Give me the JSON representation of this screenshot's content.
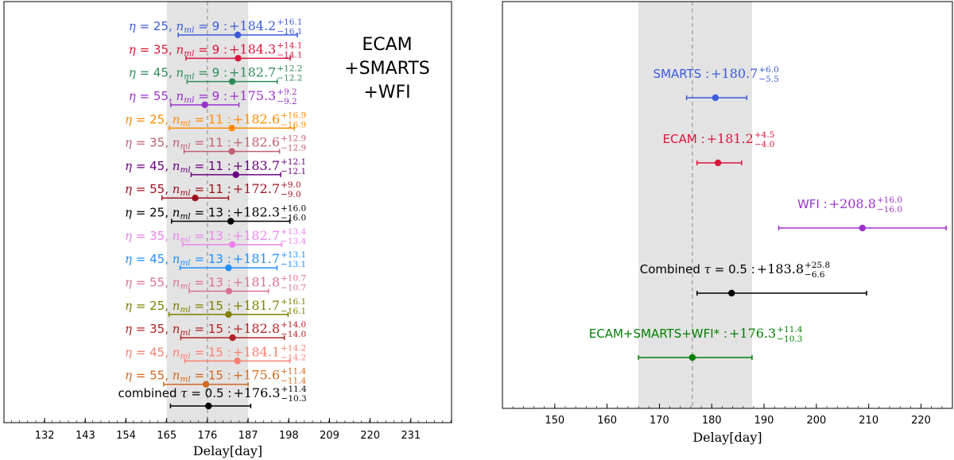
{
  "chart_data": [
    {
      "type": "errorbar",
      "title": "",
      "xlabel": "Delay[day]",
      "ylabel": "",
      "xlim": [
        121,
        242
      ],
      "xticks": [
        132,
        143,
        154,
        165,
        176,
        187,
        198,
        209,
        220,
        231
      ],
      "reference_line": 176,
      "shaded_band": [
        165,
        187
      ],
      "dataset_label": [
        "ECAM",
        "+SMARTS",
        "+WFI"
      ],
      "points": [
        {
          "eta": "25",
          "nml": "9",
          "value": 184.2,
          "plus": 16.1,
          "minus": 16.1,
          "color": "#3b5bdb"
        },
        {
          "eta": "35",
          "nml": "9",
          "value": 184.3,
          "plus": 14.1,
          "minus": 14.1,
          "color": "#dc143c"
        },
        {
          "eta": "45",
          "nml": "9",
          "value": 182.7,
          "plus": 12.2,
          "minus": 12.2,
          "color": "#2e8b57"
        },
        {
          "eta": "55",
          "nml": "9",
          "value": 175.3,
          "plus": 9.2,
          "minus": 9.2,
          "color": "#9932cc"
        },
        {
          "eta": "25",
          "nml": "11",
          "value": 182.6,
          "plus": 16.9,
          "minus": 16.9,
          "color": "#ff8c00"
        },
        {
          "eta": "35",
          "nml": "11",
          "value": 182.6,
          "plus": 12.9,
          "minus": 12.9,
          "color": "#c06070"
        },
        {
          "eta": "45",
          "nml": "11",
          "value": 183.7,
          "plus": 12.1,
          "minus": 12.1,
          "color": "#6a0080"
        },
        {
          "eta": "55",
          "nml": "11",
          "value": 172.7,
          "plus": 9.0,
          "minus": 9.0,
          "color": "#a01020"
        },
        {
          "eta": "25",
          "nml": "13",
          "value": 182.3,
          "plus": 16.0,
          "minus": 16.0,
          "color": "#000000"
        },
        {
          "eta": "35",
          "nml": "13",
          "value": 182.7,
          "plus": 13.4,
          "minus": 13.4,
          "color": "#ee82ee"
        },
        {
          "eta": "45",
          "nml": "13",
          "value": 181.7,
          "plus": 13.1,
          "minus": 13.1,
          "color": "#1e90ff"
        },
        {
          "eta": "55",
          "nml": "13",
          "value": 181.8,
          "plus": 10.7,
          "minus": 10.7,
          "color": "#db7093"
        },
        {
          "eta": "25",
          "nml": "15",
          "value": 181.7,
          "plus": 16.1,
          "minus": 16.1,
          "color": "#808000"
        },
        {
          "eta": "35",
          "nml": "15",
          "value": 182.8,
          "plus": 14.0,
          "minus": 14.0,
          "color": "#b22222"
        },
        {
          "eta": "45",
          "nml": "15",
          "value": 184.1,
          "plus": 14.2,
          "minus": 14.2,
          "color": "#fa8072"
        },
        {
          "eta": "55",
          "nml": "15",
          "value": 175.6,
          "plus": 11.4,
          "minus": 11.4,
          "color": "#d2691e"
        }
      ],
      "combined": {
        "label": "combined",
        "tau": "0.5",
        "value": 176.3,
        "plus": 11.4,
        "minus": 10.3,
        "color": "#000000"
      }
    },
    {
      "type": "errorbar",
      "title": "",
      "xlabel": "Delay[day]",
      "ylabel": "",
      "xlim": [
        140,
        226
      ],
      "xticks": [
        150,
        160,
        170,
        180,
        190,
        200,
        210,
        220
      ],
      "reference_line": 176.3,
      "shaded_band": [
        166,
        187.7
      ],
      "points": [
        {
          "label": "SMARTS",
          "value": 180.7,
          "plus": 6.0,
          "minus": 5.5,
          "color": "#3b5bdb"
        },
        {
          "label": "ECAM",
          "value": 181.2,
          "plus": 4.5,
          "minus": 4.0,
          "color": "#dc143c"
        },
        {
          "label": "WFI",
          "value": 208.8,
          "plus": 16.0,
          "minus": 16.0,
          "color": "#9932cc"
        },
        {
          "label": "Combined",
          "tau": "0.5",
          "value": 183.8,
          "plus": 25.8,
          "minus": 6.6,
          "color": "#000000"
        },
        {
          "label": "ECAM+SMARTS+WFI*",
          "value": 176.3,
          "plus": 11.4,
          "minus": 10.3,
          "color": "#008000"
        }
      ]
    }
  ]
}
